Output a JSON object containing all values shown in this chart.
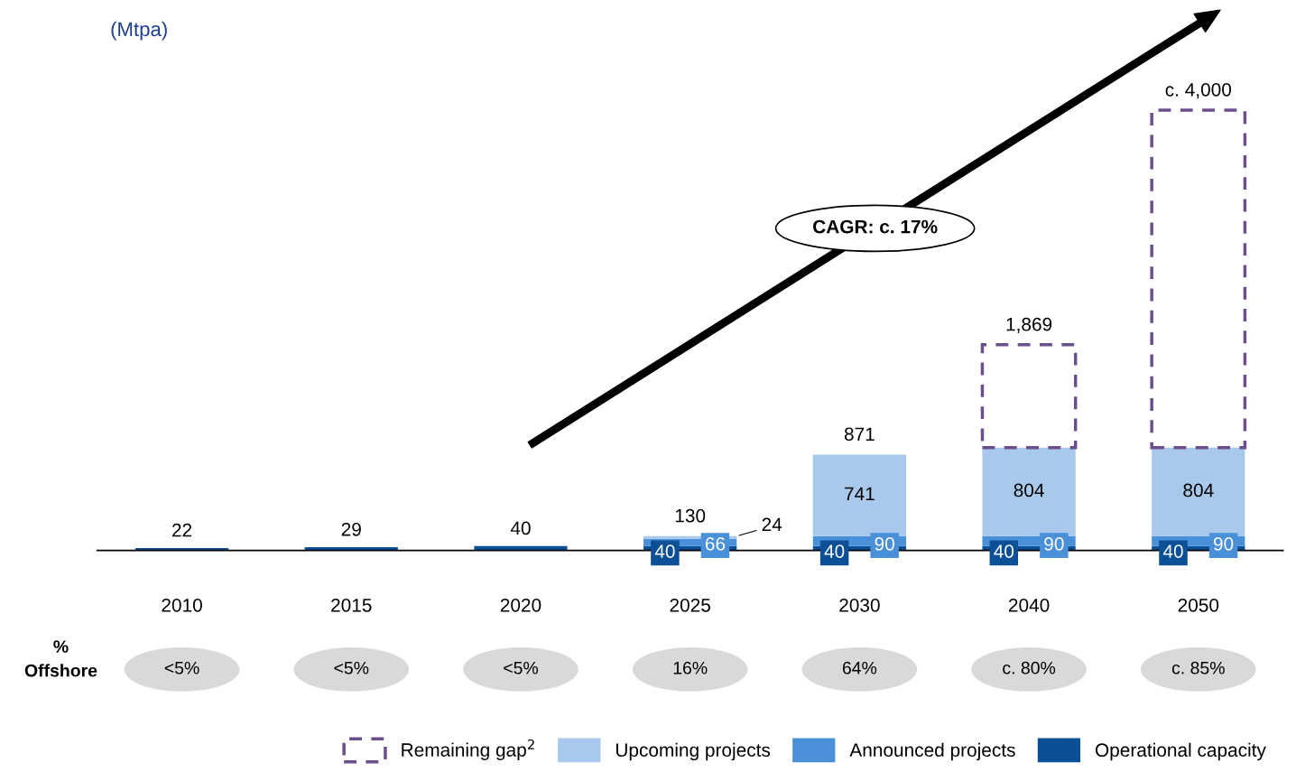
{
  "chart_data": {
    "type": "bar",
    "title": "(Mtpa)",
    "stacked": true,
    "legend": "bottom",
    "categories": [
      "2010",
      "2015",
      "2020",
      "2025",
      "2030",
      "2040",
      "2050"
    ],
    "series": [
      {
        "name": "Operational capacity",
        "color": "#0b4f96",
        "values": [
          22,
          29,
          40,
          40,
          40,
          40,
          40
        ],
        "value_labels": [
          "22",
          "29",
          "40",
          "40",
          "40",
          "40",
          "40"
        ]
      },
      {
        "name": "Announced projects",
        "color": "#4a90d9",
        "values": [
          null,
          null,
          null,
          66,
          90,
          90,
          90
        ],
        "value_labels": [
          null,
          null,
          null,
          "66",
          "90",
          "90",
          "90"
        ]
      },
      {
        "name": "Upcoming projects",
        "color": "#a8c9ec",
        "values": [
          null,
          null,
          null,
          24,
          741,
          804,
          804
        ],
        "value_labels": [
          null,
          null,
          null,
          "24",
          "741",
          "804",
          "804"
        ]
      },
      {
        "name": "Remaining gap$^{2}$",
        "color": "#6b4f8c",
        "line_style": "dashed",
        "values": [
          null,
          null,
          null,
          null,
          null,
          935,
          3066
        ]
      }
    ],
    "totals": [
      null,
      null,
      null,
      "130",
      "871",
      "1,869",
      "c. 4,000"
    ],
    "annotations": [
      "CAGR: c. 17%",
      "%\nOffshore",
      "<5%",
      "<5%",
      "<5%",
      "16%",
      "64%",
      "c. 80%",
      "c. 85%"
    ]
  }
}
